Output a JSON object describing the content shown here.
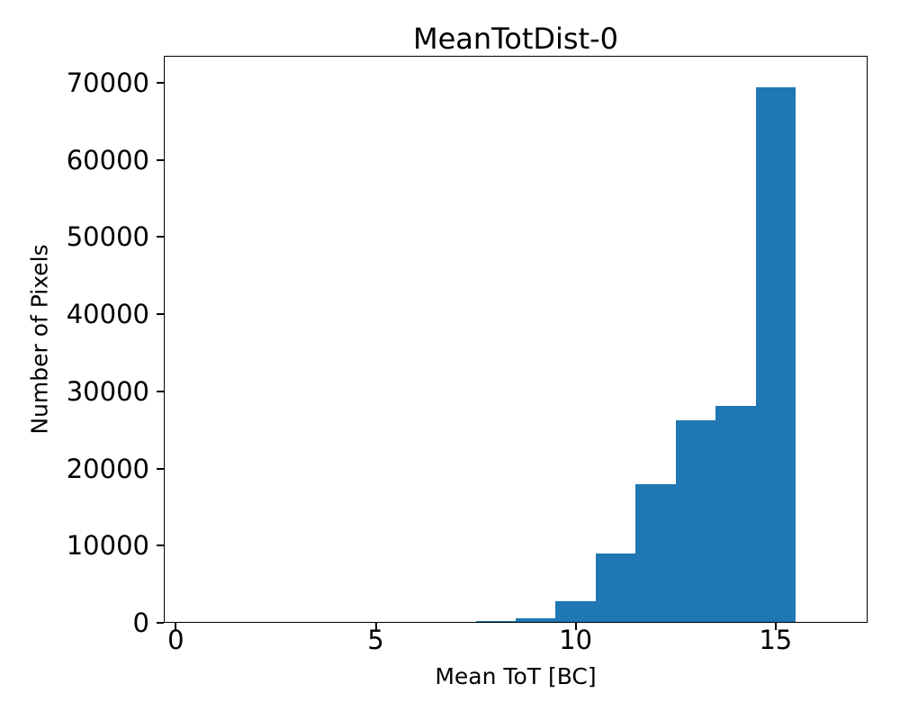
{
  "chart_data": {
    "type": "bar",
    "subtype": "histogram",
    "title": "MeanTotDist-0",
    "xlabel": "Mean ToT [BC]",
    "ylabel": "Number of Pixels",
    "bin_edges": [
      7.5,
      8.5,
      9.5,
      10.5,
      11.5,
      12.5,
      13.5,
      14.5,
      15.5
    ],
    "counts": [
      250,
      600,
      2800,
      9000,
      18000,
      26200,
      28100,
      69400
    ],
    "bar_color": "#1f77b4",
    "axis_color": "#000000",
    "background_color": "#ffffff",
    "xlim": [
      -0.3,
      17.3
    ],
    "ylim": [
      0,
      73500
    ],
    "xticks": [
      0,
      5,
      10,
      15
    ],
    "xtick_labels": [
      "0",
      "5",
      "10",
      "15"
    ],
    "yticks": [
      0,
      10000,
      20000,
      30000,
      40000,
      50000,
      60000,
      70000
    ],
    "ytick_labels": [
      "0",
      "10000",
      "20000",
      "30000",
      "40000",
      "50000",
      "60000",
      "70000"
    ],
    "grid": false,
    "legend": null
  }
}
